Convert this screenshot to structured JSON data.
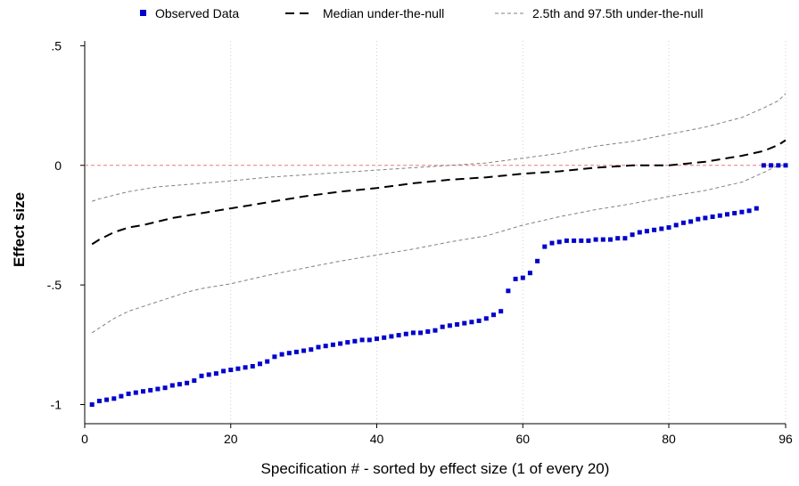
{
  "chart_data": {
    "type": "line",
    "xlabel": "Specification # - sorted by effect size (1 of every 20)",
    "ylabel": "Effect size",
    "xlim": [
      0,
      96
    ],
    "ylim": [
      -1.08,
      0.52
    ],
    "xticks": [
      0,
      20,
      40,
      60,
      80,
      96
    ],
    "xtick_labels": [
      "0",
      "20",
      "40",
      "60",
      "80",
      "96"
    ],
    "yticks": [
      -1,
      -0.5,
      0,
      0.5
    ],
    "ytick_labels": [
      "-1",
      "-.5",
      "0",
      ".5"
    ],
    "grid": "vertical dotted",
    "legend_position": "top",
    "reference_line": {
      "y": 0,
      "color": "#e87a7a"
    },
    "colors": {
      "observed": "#0000cc",
      "median": "#000000",
      "band": "#808080"
    },
    "series": [
      {
        "name": "Observed Data",
        "style": "squares",
        "x": [
          1,
          2,
          3,
          4,
          5,
          6,
          7,
          8,
          9,
          10,
          11,
          12,
          13,
          14,
          15,
          16,
          17,
          18,
          19,
          20,
          21,
          22,
          23,
          24,
          25,
          26,
          27,
          28,
          29,
          30,
          31,
          32,
          33,
          34,
          35,
          36,
          37,
          38,
          39,
          40,
          41,
          42,
          43,
          44,
          45,
          46,
          47,
          48,
          49,
          50,
          51,
          52,
          53,
          54,
          55,
          56,
          57,
          58,
          59,
          60,
          61,
          62,
          63,
          64,
          65,
          66,
          67,
          68,
          69,
          70,
          71,
          72,
          73,
          74,
          75,
          76,
          77,
          78,
          79,
          80,
          81,
          82,
          83,
          84,
          85,
          86,
          87,
          88,
          89,
          90,
          91,
          92,
          93,
          94,
          95,
          96
        ],
        "values": [
          -1.0,
          -0.985,
          -0.98,
          -0.975,
          -0.965,
          -0.955,
          -0.95,
          -0.945,
          -0.94,
          -0.935,
          -0.93,
          -0.92,
          -0.915,
          -0.91,
          -0.9,
          -0.88,
          -0.875,
          -0.87,
          -0.86,
          -0.855,
          -0.85,
          -0.845,
          -0.84,
          -0.83,
          -0.82,
          -0.8,
          -0.79,
          -0.785,
          -0.78,
          -0.775,
          -0.77,
          -0.76,
          -0.755,
          -0.75,
          -0.745,
          -0.74,
          -0.735,
          -0.73,
          -0.73,
          -0.725,
          -0.72,
          -0.715,
          -0.71,
          -0.705,
          -0.7,
          -0.7,
          -0.695,
          -0.69,
          -0.675,
          -0.67,
          -0.665,
          -0.66,
          -0.655,
          -0.65,
          -0.64,
          -0.625,
          -0.61,
          -0.525,
          -0.475,
          -0.47,
          -0.45,
          -0.4,
          -0.34,
          -0.325,
          -0.32,
          -0.315,
          -0.315,
          -0.315,
          -0.315,
          -0.31,
          -0.31,
          -0.31,
          -0.305,
          -0.305,
          -0.29,
          -0.28,
          -0.275,
          -0.27,
          -0.265,
          -0.26,
          -0.25,
          -0.24,
          -0.235,
          -0.225,
          -0.22,
          -0.215,
          -0.21,
          -0.205,
          -0.2,
          -0.195,
          -0.19,
          -0.18,
          0.0,
          0.0,
          0.0,
          0.0
        ]
      },
      {
        "name": "Median under-the-null",
        "style": "dashed",
        "x": [
          1,
          2,
          4,
          6,
          8,
          10,
          12,
          14,
          16,
          18,
          20,
          25,
          30,
          35,
          40,
          45,
          50,
          55,
          60,
          65,
          70,
          75,
          80,
          85,
          90,
          93,
          95,
          96
        ],
        "values": [
          -0.33,
          -0.31,
          -0.28,
          -0.26,
          -0.25,
          -0.235,
          -0.22,
          -0.21,
          -0.2,
          -0.19,
          -0.18,
          -0.155,
          -0.13,
          -0.11,
          -0.095,
          -0.075,
          -0.06,
          -0.05,
          -0.035,
          -0.025,
          -0.01,
          0.0,
          0.0,
          0.015,
          0.04,
          0.06,
          0.085,
          0.105
        ]
      },
      {
        "name": "2.5th and 97.5th under-the-null",
        "style": "thin-dashed",
        "x": [
          1,
          2,
          4,
          6,
          8,
          10,
          12,
          14,
          16,
          18,
          20,
          25,
          30,
          35,
          40,
          45,
          50,
          55,
          60,
          65,
          70,
          75,
          80,
          85,
          90,
          93,
          95,
          96
        ],
        "values": [
          -0.15,
          -0.14,
          -0.125,
          -0.11,
          -0.1,
          -0.09,
          -0.085,
          -0.08,
          -0.075,
          -0.07,
          -0.065,
          -0.05,
          -0.04,
          -0.03,
          -0.02,
          -0.01,
          0.0,
          0.01,
          0.03,
          0.05,
          0.08,
          0.1,
          0.13,
          0.16,
          0.2,
          0.24,
          0.27,
          0.3
        ]
      },
      {
        "name": "",
        "style": "thin-dashed",
        "x": [
          1,
          2,
          4,
          6,
          8,
          10,
          12,
          14,
          16,
          18,
          20,
          25,
          30,
          35,
          40,
          45,
          50,
          55,
          60,
          65,
          70,
          75,
          80,
          85,
          90,
          93,
          95,
          96
        ],
        "values": [
          -0.7,
          -0.68,
          -0.64,
          -0.61,
          -0.59,
          -0.57,
          -0.55,
          -0.53,
          -0.515,
          -0.505,
          -0.495,
          -0.46,
          -0.43,
          -0.4,
          -0.375,
          -0.35,
          -0.32,
          -0.295,
          -0.25,
          -0.215,
          -0.185,
          -0.16,
          -0.13,
          -0.105,
          -0.07,
          -0.03,
          0.0,
          0.0
        ]
      }
    ]
  }
}
